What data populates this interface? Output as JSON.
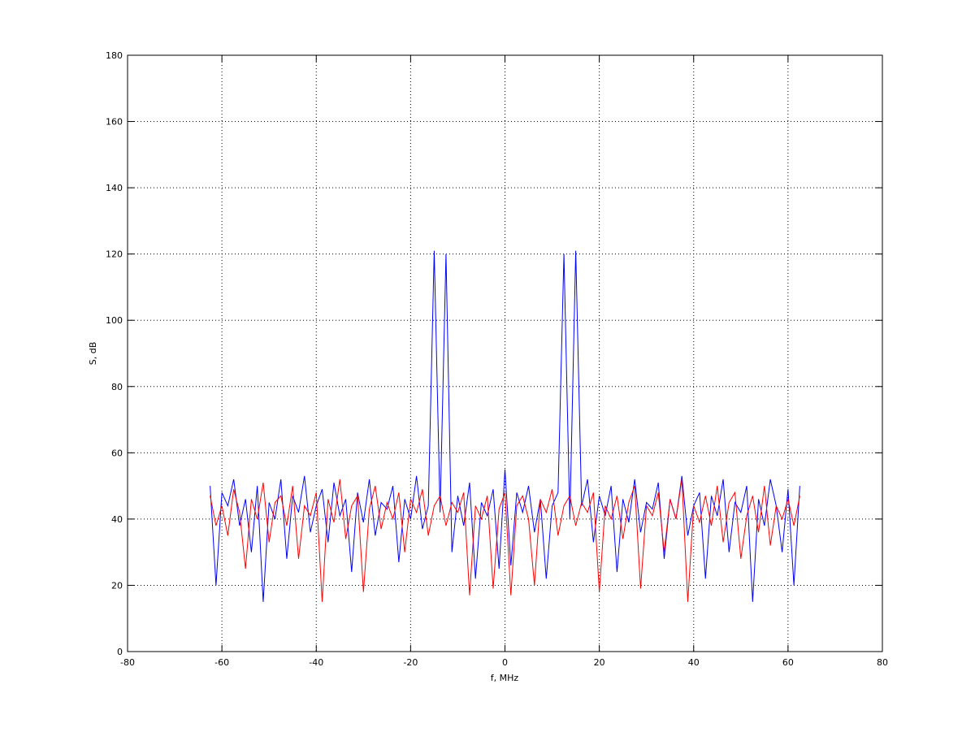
{
  "chart_data": {
    "type": "line",
    "xlabel": "f, MHz",
    "ylabel": "S, dB",
    "xlim": [
      -80,
      80
    ],
    "ylim": [
      0,
      180
    ],
    "xticks": [
      -80,
      -60,
      -40,
      -20,
      0,
      20,
      40,
      60,
      80
    ],
    "yticks": [
      0,
      20,
      40,
      60,
      80,
      100,
      120,
      140,
      160,
      180
    ],
    "grid": true,
    "x": [
      -62.5,
      -61.25,
      -60,
      -58.75,
      -57.5,
      -56.25,
      -55,
      -53.75,
      -52.5,
      -51.25,
      -50,
      -48.75,
      -47.5,
      -46.25,
      -45,
      -43.75,
      -42.5,
      -41.25,
      -40,
      -38.75,
      -37.5,
      -36.25,
      -35,
      -33.75,
      -32.5,
      -31.25,
      -30,
      -28.75,
      -27.5,
      -26.25,
      -25,
      -23.75,
      -22.5,
      -21.25,
      -20,
      -18.75,
      -17.5,
      -16.25,
      -15,
      -13.75,
      -12.5,
      -11.25,
      -10,
      -8.75,
      -7.5,
      -6.25,
      -5,
      -3.75,
      -2.5,
      -1.25,
      0,
      1.25,
      2.5,
      3.75,
      5,
      6.25,
      7.5,
      8.75,
      10,
      11.25,
      12.5,
      13.75,
      15,
      16.25,
      17.5,
      18.75,
      20,
      21.25,
      22.5,
      23.75,
      25,
      26.25,
      27.5,
      28.75,
      30,
      31.25,
      32.5,
      33.75,
      35,
      36.25,
      37.5,
      38.75,
      40,
      41.25,
      42.5,
      43.75,
      45,
      46.25,
      47.5,
      48.75,
      50,
      51.25,
      52.5,
      53.75,
      55,
      56.25,
      57.5,
      58.75,
      60,
      61.25,
      62.5
    ],
    "series": [
      {
        "color": "#0000ff",
        "values": [
          50,
          20,
          48,
          44,
          52,
          38,
          46,
          30,
          50,
          15,
          45,
          40,
          52,
          28,
          47,
          42,
          53,
          36,
          44,
          49,
          33,
          51,
          41,
          46,
          24,
          48,
          39,
          52,
          35,
          45,
          43,
          50,
          27,
          46,
          40,
          53,
          37,
          44,
          121,
          42,
          120,
          30,
          47,
          38,
          51,
          22,
          45,
          41,
          49,
          25,
          55,
          26,
          48,
          42,
          50,
          36,
          46,
          22,
          44,
          48,
          120,
          40,
          121,
          44,
          52,
          33,
          47,
          41,
          50,
          24,
          46,
          39,
          52,
          36,
          45,
          43,
          51,
          28,
          46,
          40,
          53,
          35,
          44,
          48,
          22,
          47,
          41,
          52,
          30,
          45,
          42,
          50,
          15,
          46,
          38,
          52,
          44,
          30,
          49,
          20,
          50
        ]
      },
      {
        "color": "#ff0000",
        "values": [
          47,
          38,
          44,
          35,
          49,
          42,
          25,
          46,
          40,
          51,
          33,
          45,
          47,
          38,
          50,
          28,
          44,
          41,
          48,
          15,
          46,
          39,
          52,
          34,
          44,
          47,
          18,
          43,
          50,
          37,
          45,
          40,
          48,
          30,
          46,
          42,
          49,
          35,
          44,
          47,
          38,
          45,
          42,
          48,
          17,
          44,
          40,
          47,
          19,
          43,
          48,
          17,
          44,
          47,
          40,
          20,
          46,
          42,
          49,
          35,
          44,
          47,
          38,
          45,
          42,
          48,
          18,
          44,
          40,
          47,
          34,
          45,
          50,
          19,
          44,
          41,
          48,
          30,
          46,
          40,
          52,
          15,
          44,
          39,
          47,
          38,
          50,
          33,
          45,
          48,
          28,
          41,
          47,
          36,
          50,
          32,
          44,
          40,
          46,
          38,
          47
        ]
      }
    ]
  }
}
